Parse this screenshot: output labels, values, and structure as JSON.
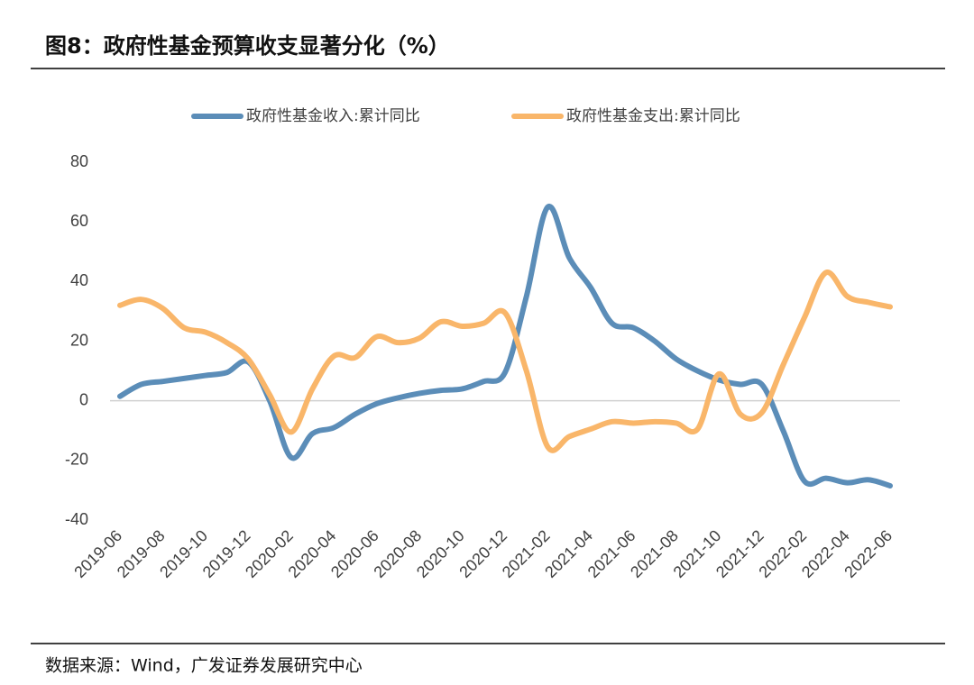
{
  "title": "图8：政府性基金预算收支显著分化（%）",
  "source": "数据来源：Wind，广发证券发展研究中心",
  "chart_data": {
    "type": "line",
    "categories": [
      "2019-06",
      null,
      "2019-08",
      null,
      "2019-10",
      null,
      "2019-12",
      null,
      "2020-02",
      null,
      "2020-04",
      null,
      "2020-06",
      null,
      "2020-08",
      null,
      "2020-10",
      null,
      "2020-12",
      null,
      "2021-02",
      null,
      "2021-04",
      null,
      "2021-06",
      null,
      "2021-08",
      null,
      "2021-10",
      null,
      "2021-12",
      null,
      "2022-02",
      null,
      "2022-04",
      null,
      "2022-06"
    ],
    "series": [
      {
        "name": "政府性基金收入:累计同比",
        "color": "#5b8db8",
        "values": [
          1.5,
          5.5,
          6.5,
          7.5,
          8.5,
          9.5,
          13,
          0,
          -19,
          -11,
          -9,
          -4.5,
          -1,
          1,
          2.5,
          3.5,
          4,
          6.5,
          9.5,
          35,
          65,
          48,
          38,
          26,
          24.5,
          20,
          14,
          10,
          7,
          5.5,
          5.5,
          -10,
          -27,
          -26,
          -27.5,
          -26.5,
          -28.5
        ]
      },
      {
        "name": "政府性基金支出:累计同比",
        "color": "#f9b66a",
        "values": [
          32,
          34,
          31,
          24.5,
          23,
          19.5,
          14,
          2,
          -10.5,
          4,
          15,
          14.5,
          21.5,
          19.5,
          21,
          26.5,
          25,
          26,
          29.5,
          10,
          -15.5,
          -12,
          -9.5,
          -7,
          -7.5,
          -7,
          -7.5,
          -9.5,
          9,
          -4.5,
          -4,
          12,
          28,
          43,
          35,
          33,
          31.5
        ]
      }
    ],
    "ylim": [
      -40,
      80
    ],
    "yticks": [
      -40,
      -20,
      0,
      20,
      40,
      60,
      80
    ],
    "legend": "top"
  }
}
